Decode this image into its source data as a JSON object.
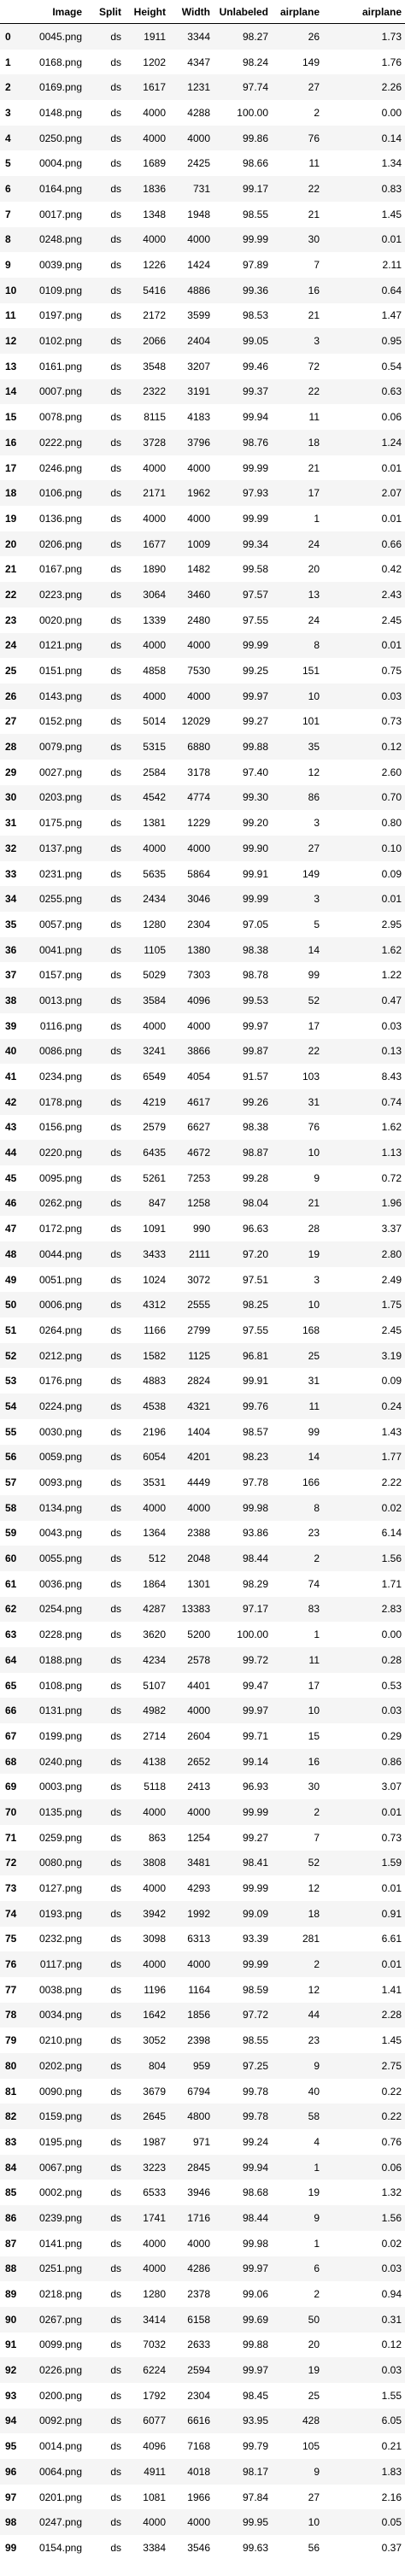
{
  "columns": [
    "",
    "Image",
    "Split",
    "Height",
    "Width",
    "Unlabeled",
    "airplane",
    "airplane"
  ],
  "rows": [
    [
      "0",
      "0045.png",
      "ds",
      "1911",
      "3344",
      "98.27",
      "26",
      "1.73"
    ],
    [
      "1",
      "0168.png",
      "ds",
      "1202",
      "4347",
      "98.24",
      "149",
      "1.76"
    ],
    [
      "2",
      "0169.png",
      "ds",
      "1617",
      "1231",
      "97.74",
      "27",
      "2.26"
    ],
    [
      "3",
      "0148.png",
      "ds",
      "4000",
      "4288",
      "100.00",
      "2",
      "0.00"
    ],
    [
      "4",
      "0250.png",
      "ds",
      "4000",
      "4000",
      "99.86",
      "76",
      "0.14"
    ],
    [
      "5",
      "0004.png",
      "ds",
      "1689",
      "2425",
      "98.66",
      "11",
      "1.34"
    ],
    [
      "6",
      "0164.png",
      "ds",
      "1836",
      "731",
      "99.17",
      "22",
      "0.83"
    ],
    [
      "7",
      "0017.png",
      "ds",
      "1348",
      "1948",
      "98.55",
      "21",
      "1.45"
    ],
    [
      "8",
      "0248.png",
      "ds",
      "4000",
      "4000",
      "99.99",
      "30",
      "0.01"
    ],
    [
      "9",
      "0039.png",
      "ds",
      "1226",
      "1424",
      "97.89",
      "7",
      "2.11"
    ],
    [
      "10",
      "0109.png",
      "ds",
      "5416",
      "4886",
      "99.36",
      "16",
      "0.64"
    ],
    [
      "11",
      "0197.png",
      "ds",
      "2172",
      "3599",
      "98.53",
      "21",
      "1.47"
    ],
    [
      "12",
      "0102.png",
      "ds",
      "2066",
      "2404",
      "99.05",
      "3",
      "0.95"
    ],
    [
      "13",
      "0161.png",
      "ds",
      "3548",
      "3207",
      "99.46",
      "72",
      "0.54"
    ],
    [
      "14",
      "0007.png",
      "ds",
      "2322",
      "3191",
      "99.37",
      "22",
      "0.63"
    ],
    [
      "15",
      "0078.png",
      "ds",
      "8115",
      "4183",
      "99.94",
      "11",
      "0.06"
    ],
    [
      "16",
      "0222.png",
      "ds",
      "3728",
      "3796",
      "98.76",
      "18",
      "1.24"
    ],
    [
      "17",
      "0246.png",
      "ds",
      "4000",
      "4000",
      "99.99",
      "21",
      "0.01"
    ],
    [
      "18",
      "0106.png",
      "ds",
      "2171",
      "1962",
      "97.93",
      "17",
      "2.07"
    ],
    [
      "19",
      "0136.png",
      "ds",
      "4000",
      "4000",
      "99.99",
      "1",
      "0.01"
    ],
    [
      "20",
      "0206.png",
      "ds",
      "1677",
      "1009",
      "99.34",
      "24",
      "0.66"
    ],
    [
      "21",
      "0167.png",
      "ds",
      "1890",
      "1482",
      "99.58",
      "20",
      "0.42"
    ],
    [
      "22",
      "0223.png",
      "ds",
      "3064",
      "3460",
      "97.57",
      "13",
      "2.43"
    ],
    [
      "23",
      "0020.png",
      "ds",
      "1339",
      "2480",
      "97.55",
      "24",
      "2.45"
    ],
    [
      "24",
      "0121.png",
      "ds",
      "4000",
      "4000",
      "99.99",
      "8",
      "0.01"
    ],
    [
      "25",
      "0151.png",
      "ds",
      "4858",
      "7530",
      "99.25",
      "151",
      "0.75"
    ],
    [
      "26",
      "0143.png",
      "ds",
      "4000",
      "4000",
      "99.97",
      "10",
      "0.03"
    ],
    [
      "27",
      "0152.png",
      "ds",
      "5014",
      "12029",
      "99.27",
      "101",
      "0.73"
    ],
    [
      "28",
      "0079.png",
      "ds",
      "5315",
      "6880",
      "99.88",
      "35",
      "0.12"
    ],
    [
      "29",
      "0027.png",
      "ds",
      "2584",
      "3178",
      "97.40",
      "12",
      "2.60"
    ],
    [
      "30",
      "0203.png",
      "ds",
      "4542",
      "4774",
      "99.30",
      "86",
      "0.70"
    ],
    [
      "31",
      "0175.png",
      "ds",
      "1381",
      "1229",
      "99.20",
      "3",
      "0.80"
    ],
    [
      "32",
      "0137.png",
      "ds",
      "4000",
      "4000",
      "99.90",
      "27",
      "0.10"
    ],
    [
      "33",
      "0231.png",
      "ds",
      "5635",
      "5864",
      "99.91",
      "149",
      "0.09"
    ],
    [
      "34",
      "0255.png",
      "ds",
      "2434",
      "3046",
      "99.99",
      "3",
      "0.01"
    ],
    [
      "35",
      "0057.png",
      "ds",
      "1280",
      "2304",
      "97.05",
      "5",
      "2.95"
    ],
    [
      "36",
      "0041.png",
      "ds",
      "1105",
      "1380",
      "98.38",
      "14",
      "1.62"
    ],
    [
      "37",
      "0157.png",
      "ds",
      "5029",
      "7303",
      "98.78",
      "99",
      "1.22"
    ],
    [
      "38",
      "0013.png",
      "ds",
      "3584",
      "4096",
      "99.53",
      "52",
      "0.47"
    ],
    [
      "39",
      "0116.png",
      "ds",
      "4000",
      "4000",
      "99.97",
      "17",
      "0.03"
    ],
    [
      "40",
      "0086.png",
      "ds",
      "3241",
      "3866",
      "99.87",
      "22",
      "0.13"
    ],
    [
      "41",
      "0234.png",
      "ds",
      "6549",
      "4054",
      "91.57",
      "103",
      "8.43"
    ],
    [
      "42",
      "0178.png",
      "ds",
      "4219",
      "4617",
      "99.26",
      "31",
      "0.74"
    ],
    [
      "43",
      "0156.png",
      "ds",
      "2579",
      "6627",
      "98.38",
      "76",
      "1.62"
    ],
    [
      "44",
      "0220.png",
      "ds",
      "6435",
      "4672",
      "98.87",
      "10",
      "1.13"
    ],
    [
      "45",
      "0095.png",
      "ds",
      "5261",
      "7253",
      "99.28",
      "9",
      "0.72"
    ],
    [
      "46",
      "0262.png",
      "ds",
      "847",
      "1258",
      "98.04",
      "21",
      "1.96"
    ],
    [
      "47",
      "0172.png",
      "ds",
      "1091",
      "990",
      "96.63",
      "28",
      "3.37"
    ],
    [
      "48",
      "0044.png",
      "ds",
      "3433",
      "2111",
      "97.20",
      "19",
      "2.80"
    ],
    [
      "49",
      "0051.png",
      "ds",
      "1024",
      "3072",
      "97.51",
      "3",
      "2.49"
    ],
    [
      "50",
      "0006.png",
      "ds",
      "4312",
      "2555",
      "98.25",
      "10",
      "1.75"
    ],
    [
      "51",
      "0264.png",
      "ds",
      "1166",
      "2799",
      "97.55",
      "168",
      "2.45"
    ],
    [
      "52",
      "0212.png",
      "ds",
      "1582",
      "1125",
      "96.81",
      "25",
      "3.19"
    ],
    [
      "53",
      "0176.png",
      "ds",
      "4883",
      "2824",
      "99.91",
      "31",
      "0.09"
    ],
    [
      "54",
      "0224.png",
      "ds",
      "4538",
      "4321",
      "99.76",
      "11",
      "0.24"
    ],
    [
      "55",
      "0030.png",
      "ds",
      "2196",
      "1404",
      "98.57",
      "99",
      "1.43"
    ],
    [
      "56",
      "0059.png",
      "ds",
      "6054",
      "4201",
      "98.23",
      "14",
      "1.77"
    ],
    [
      "57",
      "0093.png",
      "ds",
      "3531",
      "4449",
      "97.78",
      "166",
      "2.22"
    ],
    [
      "58",
      "0134.png",
      "ds",
      "4000",
      "4000",
      "99.98",
      "8",
      "0.02"
    ],
    [
      "59",
      "0043.png",
      "ds",
      "1364",
      "2388",
      "93.86",
      "23",
      "6.14"
    ],
    [
      "60",
      "0055.png",
      "ds",
      "512",
      "2048",
      "98.44",
      "2",
      "1.56"
    ],
    [
      "61",
      "0036.png",
      "ds",
      "1864",
      "1301",
      "98.29",
      "74",
      "1.71"
    ],
    [
      "62",
      "0254.png",
      "ds",
      "4287",
      "13383",
      "97.17",
      "83",
      "2.83"
    ],
    [
      "63",
      "0228.png",
      "ds",
      "3620",
      "5200",
      "100.00",
      "1",
      "0.00"
    ],
    [
      "64",
      "0188.png",
      "ds",
      "4234",
      "2578",
      "99.72",
      "11",
      "0.28"
    ],
    [
      "65",
      "0108.png",
      "ds",
      "5107",
      "4401",
      "99.47",
      "17",
      "0.53"
    ],
    [
      "66",
      "0131.png",
      "ds",
      "4982",
      "4000",
      "99.97",
      "10",
      "0.03"
    ],
    [
      "67",
      "0199.png",
      "ds",
      "2714",
      "2604",
      "99.71",
      "15",
      "0.29"
    ],
    [
      "68",
      "0240.png",
      "ds",
      "4138",
      "2652",
      "99.14",
      "16",
      "0.86"
    ],
    [
      "69",
      "0003.png",
      "ds",
      "5118",
      "2413",
      "96.93",
      "30",
      "3.07"
    ],
    [
      "70",
      "0135.png",
      "ds",
      "4000",
      "4000",
      "99.99",
      "2",
      "0.01"
    ],
    [
      "71",
      "0259.png",
      "ds",
      "863",
      "1254",
      "99.27",
      "7",
      "0.73"
    ],
    [
      "72",
      "0080.png",
      "ds",
      "3808",
      "3481",
      "98.41",
      "52",
      "1.59"
    ],
    [
      "73",
      "0127.png",
      "ds",
      "4000",
      "4293",
      "99.99",
      "12",
      "0.01"
    ],
    [
      "74",
      "0193.png",
      "ds",
      "3942",
      "1992",
      "99.09",
      "18",
      "0.91"
    ],
    [
      "75",
      "0232.png",
      "ds",
      "3098",
      "6313",
      "93.39",
      "281",
      "6.61"
    ],
    [
      "76",
      "0117.png",
      "ds",
      "4000",
      "4000",
      "99.99",
      "2",
      "0.01"
    ],
    [
      "77",
      "0038.png",
      "ds",
      "1196",
      "1164",
      "98.59",
      "12",
      "1.41"
    ],
    [
      "78",
      "0034.png",
      "ds",
      "1642",
      "1856",
      "97.72",
      "44",
      "2.28"
    ],
    [
      "79",
      "0210.png",
      "ds",
      "3052",
      "2398",
      "98.55",
      "23",
      "1.45"
    ],
    [
      "80",
      "0202.png",
      "ds",
      "804",
      "959",
      "97.25",
      "9",
      "2.75"
    ],
    [
      "81",
      "0090.png",
      "ds",
      "3679",
      "6794",
      "99.78",
      "40",
      "0.22"
    ],
    [
      "82",
      "0159.png",
      "ds",
      "2645",
      "4800",
      "99.78",
      "58",
      "0.22"
    ],
    [
      "83",
      "0195.png",
      "ds",
      "1987",
      "971",
      "99.24",
      "4",
      "0.76"
    ],
    [
      "84",
      "0067.png",
      "ds",
      "3223",
      "2845",
      "99.94",
      "1",
      "0.06"
    ],
    [
      "85",
      "0002.png",
      "ds",
      "6533",
      "3946",
      "98.68",
      "19",
      "1.32"
    ],
    [
      "86",
      "0239.png",
      "ds",
      "1741",
      "1716",
      "98.44",
      "9",
      "1.56"
    ],
    [
      "87",
      "0141.png",
      "ds",
      "4000",
      "4000",
      "99.98",
      "1",
      "0.02"
    ],
    [
      "88",
      "0251.png",
      "ds",
      "4000",
      "4286",
      "99.97",
      "6",
      "0.03"
    ],
    [
      "89",
      "0218.png",
      "ds",
      "1280",
      "2378",
      "99.06",
      "2",
      "0.94"
    ],
    [
      "90",
      "0267.png",
      "ds",
      "3414",
      "6158",
      "99.69",
      "50",
      "0.31"
    ],
    [
      "91",
      "0099.png",
      "ds",
      "7032",
      "2633",
      "99.88",
      "20",
      "0.12"
    ],
    [
      "92",
      "0226.png",
      "ds",
      "6224",
      "2594",
      "99.97",
      "19",
      "0.03"
    ],
    [
      "93",
      "0200.png",
      "ds",
      "1792",
      "2304",
      "98.45",
      "25",
      "1.55"
    ],
    [
      "94",
      "0092.png",
      "ds",
      "6077",
      "6616",
      "93.95",
      "428",
      "6.05"
    ],
    [
      "95",
      "0014.png",
      "ds",
      "4096",
      "7168",
      "99.79",
      "105",
      "0.21"
    ],
    [
      "96",
      "0064.png",
      "ds",
      "4911",
      "4018",
      "98.17",
      "9",
      "1.83"
    ],
    [
      "97",
      "0201.png",
      "ds",
      "1081",
      "1966",
      "97.84",
      "27",
      "2.16"
    ],
    [
      "98",
      "0247.png",
      "ds",
      "4000",
      "4000",
      "99.95",
      "10",
      "0.05"
    ],
    [
      "99",
      "0154.png",
      "ds",
      "3384",
      "3546",
      "99.63",
      "56",
      "0.37"
    ]
  ]
}
